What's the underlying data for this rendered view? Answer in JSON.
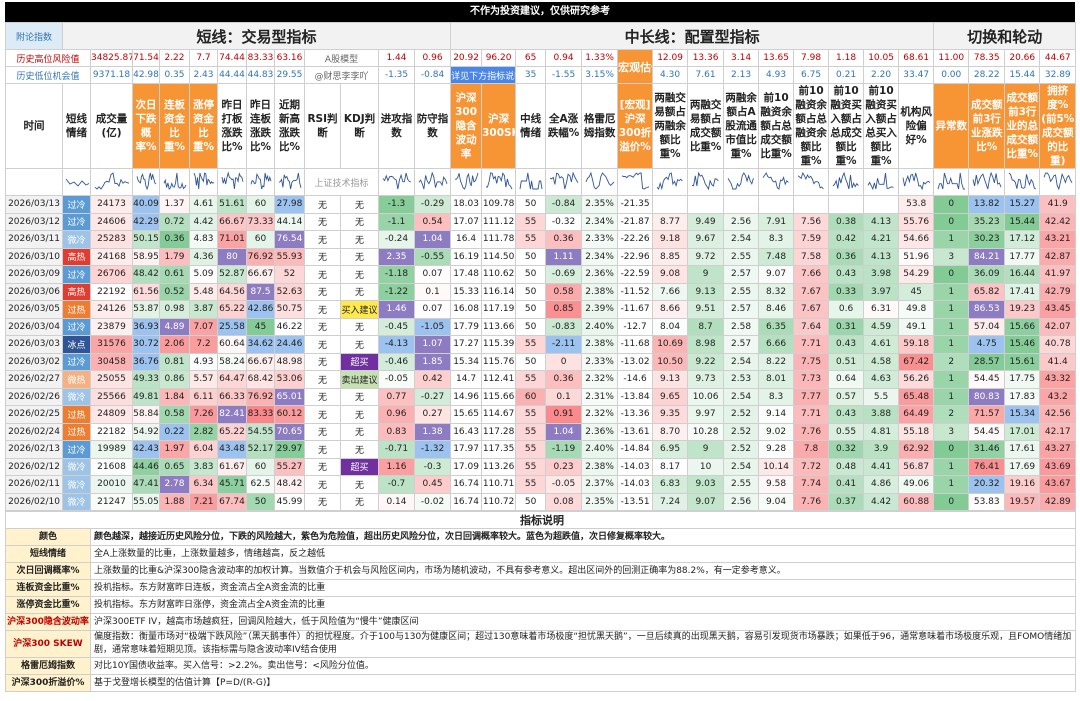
{
  "banner": "不作为投资建议，仅供研究参考",
  "sections": {
    "index_note": "附论指数",
    "short": "短线：交易型指标",
    "mid": "中长线：配置型指标",
    "rotation": "切换和轮动"
  },
  "risk_row": {
    "label": "历史高位风险值",
    "cells": [
      "34825.87",
      "71.54",
      "2.22",
      "7.7",
      "74.44",
      "83.33",
      "63.16",
      "A股模型",
      "1.44",
      "0.96",
      "20.92",
      "96.20",
      "65",
      "0.94",
      "1.33%",
      "宏观估值",
      "12.09",
      "13.36",
      "3.14",
      "13.65",
      "7.98",
      "1.18",
      "10.05",
      "68.61",
      "11.00",
      "78.35",
      "20.66",
      "44.67"
    ]
  },
  "opportunity_row": {
    "label": "历史低位机会值",
    "cells": [
      "9371.18",
      "42.98",
      "0.35",
      "2.43",
      "44.44",
      "44.83",
      "29.55",
      "@财思李李吖",
      "-1.35",
      "-0.84",
      "详见下方指标说明",
      "35",
      "-1.55",
      "3.15%",
      "4.30",
      "7.61",
      "2.13",
      "4.93",
      "6.75",
      "0.21",
      "2.20",
      "33.47",
      "0.00",
      "28.22",
      "15.44",
      "32.89"
    ]
  },
  "table": {
    "columns": [
      "时间",
      "短线情绪",
      "成交量(亿)",
      "次日下跌概率%",
      "连板资金比重%",
      "涨停资金比重%",
      "昨日打板涨跌比%",
      "昨日连板涨跌比%",
      "近期新高涨跌比%",
      "RSI判断",
      "KDJ判断",
      "进攻指数",
      "防守指数",
      "沪深300隐含波动率",
      "沪深300SKEW",
      "中线情绪",
      "全A涨跌幅%",
      "格雷厄姆指数",
      "[宏观]沪深300折溢价%",
      "两融交易额占两融余额比重%",
      "两融交易额占成交额比重%",
      "两融余额占A股流通市值比重%",
      "前10融资余额占总成交额比重%",
      "前10融资余额占总融资余额比重%",
      "前10融资买入额占总成交额比重%",
      "前10融资买入额占总买入额比重%",
      "机构风险偏好%",
      "异常数",
      "成交额前3行业涨跌比%",
      "成交额前3行业的总成交额比重%",
      "拥挤度%(前5%成交额的比重)"
    ],
    "sparkline_note": "上证技术指标",
    "rows": [
      [
        "2026/03/13",
        "过冷",
        "24173",
        "40.09",
        "1.37",
        "4.61",
        "51.61",
        "60",
        "27.98",
        "无",
        "无",
        "-1.3",
        "-0.29",
        "18.03",
        "109.78",
        "50",
        "-0.84",
        "2.35%",
        "-21.35",
        null,
        null,
        null,
        null,
        null,
        null,
        null,
        "53.8",
        "0",
        "13.82",
        "15.27",
        "41.9"
      ],
      [
        "2026/03/12",
        "过冷",
        "24606",
        "42.29",
        "0.72",
        "4.42",
        "66.67",
        "73.33",
        "44.14",
        "无",
        "无",
        "-1.1",
        "0.54",
        "17.07",
        "111.12",
        "55",
        "-0.32",
        "2.34%",
        "-21.87",
        "8.77",
        "9.49",
        "2.56",
        "7.91",
        "7.56",
        "0.38",
        "4.13",
        "55.76",
        "0",
        "35.23",
        "15.44",
        "42.42"
      ],
      [
        "2026/03/11",
        "微冷",
        "25283",
        "50.15",
        "0.36",
        "4.83",
        "71.01",
        "60",
        "76.54",
        "无",
        "无",
        "-0.24",
        "1.04",
        "16.4",
        "111.78",
        "55",
        "0.36",
        "2.33%",
        "-22.26",
        "9.18",
        "9.67",
        "2.54",
        "8.3",
        "7.59",
        "0.42",
        "4.21",
        "54.66",
        "1",
        "30.23",
        "17.12",
        "43.21"
      ],
      [
        "2026/03/10",
        "高热",
        "24168",
        "58.95",
        "1.79",
        "4.36",
        "80",
        "76.92",
        "55.93",
        "无",
        "无",
        "2.35",
        "-0.55",
        "16.19",
        "114.50",
        "50",
        "1.11",
        "2.34%",
        "-22.96",
        "8.85",
        "9.72",
        "2.55",
        "7.48",
        "7.58",
        "0.36",
        "4.13",
        "51.96",
        "3",
        "84.21",
        "17.77",
        "42.87"
      ],
      [
        "2026/03/09",
        "过冷",
        "26706",
        "48.42",
        "0.61",
        "5.09",
        "52.87",
        "66.67",
        "52",
        "无",
        "无",
        "-1.18",
        "0.07",
        "17.48",
        "110.62",
        "50",
        "-0.69",
        "2.36%",
        "-22.59",
        "9.08",
        "9",
        "2.57",
        "9.07",
        "7.66",
        "0.43",
        "3.98",
        "54.29",
        "0",
        "36.09",
        "16.44",
        "41.97"
      ],
      [
        "2026/03/06",
        "高热",
        "22192",
        "61.56",
        "0.52",
        "5.48",
        "64.56",
        "87.5",
        "52.63",
        "无",
        "无",
        "-1.22",
        "0.1",
        "15.33",
        "116.14",
        "50",
        "0.58",
        "2.38%",
        "-11.52",
        "7.66",
        "9.13",
        "2.55",
        "8.32",
        "7.67",
        "0.33",
        "3.97",
        "45",
        "1",
        "65.82",
        "17.41",
        "42.79"
      ],
      [
        "2026/03/05",
        "过热",
        "24126",
        "53.87",
        "0.98",
        "3.87",
        "65.22",
        "42.86",
        "50.75",
        "无",
        "买入建议",
        "1.46",
        "0.07",
        "16.08",
        "117.19",
        "50",
        "0.85",
        "2.39%",
        "-11.67",
        "8.66",
        "9.51",
        "2.57",
        "8.46",
        "7.67",
        "0.6",
        "6.31",
        "49.8",
        "1",
        "86.53",
        "19.23",
        "43.45"
      ],
      [
        "2026/03/04",
        "过冷",
        "23879",
        "36.93",
        "4.89",
        "7.07",
        "25.58",
        "45",
        "46.22",
        "无",
        "无",
        "-0.45",
        "-1.05",
        "17.79",
        "113.66",
        "50",
        "-0.83",
        "2.40%",
        "-12.7",
        "8.04",
        "8.7",
        "2.58",
        "6.35",
        "7.64",
        "0.31",
        "4.59",
        "49.1",
        "1",
        "57.04",
        "15.66",
        "42.07"
      ],
      [
        "2026/03/03",
        "冰点",
        "31576",
        "30.72",
        "2.06",
        "7.2",
        "60.64",
        "34.62",
        "24.46",
        "无",
        "无",
        "-4.13",
        "1.07",
        "17.27",
        "115.39",
        "55",
        "-2.11",
        "2.38%",
        "-11.68",
        "10.69",
        "8.98",
        "2.57",
        "6.66",
        "7.71",
        "0.43",
        "4.61",
        "59.18",
        "1",
        "4.75",
        "15.46",
        "40.78"
      ],
      [
        "2026/03/02",
        "过冷",
        "30458",
        "36.76",
        "0.81",
        "4.93",
        "58.24",
        "66.67",
        "48.98",
        "无",
        "超买",
        "-0.46",
        "1.85",
        "15.34",
        "115.76",
        "50",
        "0",
        "2.33%",
        "-13.02",
        "10.50",
        "9.22",
        "2.54",
        "8.22",
        "7.75",
        "0.51",
        "4.58",
        "67.42",
        "2",
        "28.57",
        "15.61",
        "41.4"
      ],
      [
        "2026/02/27",
        "微热",
        "25055",
        "49.33",
        "0.86",
        "5.57",
        "64.47",
        "68.42",
        "53.06",
        "无",
        "卖出建议",
        "-0.05",
        "0.42",
        "14.7",
        "112.41",
        "55",
        "0.36",
        "2.32%",
        "-14.6",
        "9.13",
        "9.73",
        "2.53",
        "8.01",
        "7.73",
        "0.64",
        "4.63",
        "56.26",
        "1",
        "54.45",
        "17.75",
        "43.32"
      ],
      [
        "2026/02/26",
        "微冷",
        "25566",
        "49.81",
        "1.84",
        "6.11",
        "66.33",
        "76.92",
        "65.01",
        "无",
        "无",
        "0.77",
        "-0.27",
        "14.96",
        "115.66",
        "60",
        "0.1",
        "2.31%",
        "-13.84",
        "9.65",
        "10.06",
        "2.54",
        "8.3",
        "7.77",
        "0.57",
        "5.5",
        "65.48",
        "1",
        "80.83",
        "17.83",
        "43.2"
      ],
      [
        "2026/02/25",
        "过热",
        "24809",
        "58.84",
        "0.58",
        "7.26",
        "82.41",
        "83.33",
        "60.12",
        "无",
        "无",
        "0.96",
        "0.27",
        "15.65",
        "114.67",
        "55",
        "0.91",
        "2.32%",
        "-13.36",
        "9.35",
        "9.97",
        "2.52",
        "9.14",
        "7.71",
        "0.43",
        "3.88",
        "64.49",
        "2",
        "71.57",
        "15.34",
        "42.56"
      ],
      [
        "2026/02/24",
        "过热",
        "22182",
        "54.92",
        "0.22",
        "2.82",
        "65.22",
        "54.55",
        "70.65",
        "无",
        "无",
        "0.83",
        "1.38",
        "16.43",
        "117.28",
        "55",
        "1.04",
        "2.36%",
        "-13.61",
        "8.70",
        "10.28",
        "2.52",
        "9.02",
        "7.76",
        "0.55",
        "4.81",
        "55.18",
        "3",
        "54.45",
        "17.01",
        "42.17"
      ],
      [
        "2026/02/13",
        "过冷",
        "19989",
        "42.43",
        "1.97",
        "6.04",
        "43.48",
        "52.17",
        "29.97",
        "无",
        "无",
        "-0.71",
        "-1.32",
        "17.97",
        "117.35",
        "55",
        "-1.19",
        "2.40%",
        "-14.84",
        "6.95",
        "9",
        "2.52",
        "9.28",
        "7.8",
        "0.32",
        "3.9",
        "62.92",
        "0",
        "31.46",
        "17.61",
        "43.27"
      ],
      [
        "2026/02/12",
        "微冷",
        "21608",
        "44.46",
        "0.65",
        "3.83",
        "61.67",
        "60",
        "55.27",
        "无",
        "超买",
        "1.16",
        "-0.3",
        "17.09",
        "113.26",
        "55",
        "0.23",
        "2.38%",
        "-14.03",
        "8.17",
        "10",
        "2.54",
        "10.14",
        "7.72",
        "0.48",
        "4.41",
        "56.87",
        "1",
        "76.41",
        "17.69",
        "43.69"
      ],
      [
        "2026/02/11",
        "微冷",
        "20010",
        "47.41",
        "2.78",
        "6.34",
        "45.71",
        "62.5",
        "48.42",
        "无",
        "无",
        "-0.7",
        "0.45",
        "16.74",
        "110.71",
        "55",
        "-0.05",
        "2.37%",
        "-14.03",
        "6.83",
        "9.03",
        "2.55",
        "9.58",
        "7.74",
        "0.41",
        "4.86",
        "49.06",
        "1",
        "20.32",
        "19.16",
        "43.67"
      ],
      [
        "2026/02/10",
        "微冷",
        "21247",
        "55.05",
        "1.88",
        "7.21",
        "67.74",
        "50",
        "45.99",
        "无",
        "无",
        "0.14",
        "-0.02",
        "16.74",
        "110.72",
        "50",
        "0.08",
        "2.35%",
        "-13.51",
        "7.24",
        "9.07",
        "2.56",
        "9.04",
        "7.76",
        "0.37",
        "4.42",
        "60.88",
        "0",
        "53.83",
        "19.57",
        "42.89"
      ]
    ],
    "mood_colors": [
      "#5b9bd5",
      "#5b9bd5",
      "#9dc3e6",
      "#e03c31",
      "#5b9bd5",
      "#e03c31",
      "#ed7d31",
      "#5b9bd5",
      "#2f5597",
      "#5b9bd5",
      "#f4b183",
      "#9dc3e6",
      "#ed7d31",
      "#ed7d31",
      "#5b9bd5",
      "#9dc3e6",
      "#9dc3e6",
      "#9dc3e6"
    ],
    "kdj_colors": [
      null,
      null,
      null,
      null,
      null,
      null,
      "#ffe94d",
      null,
      null,
      "#7030a0",
      "#c6e0b4",
      null,
      null,
      null,
      null,
      "#7030a0",
      null,
      null
    ]
  },
  "legend": {
    "title": "指标说明",
    "items": [
      {
        "label": "颜色",
        "text": "颜色越深，越接近历史风险分位，下跌的风险越大，紫色为危险值，超出历史风险分位，次日回调概率较大。蓝色为超跌值，次日修复概率较大。"
      },
      {
        "label": "短线情绪",
        "text": "全A上涨数量的比重，上涨数量越多，情绪越高，反之越低"
      },
      {
        "label": "次日回调概率%",
        "text": "上涨数量的比重&沪深300隐含波动率的加权计算。当数值介于机会与风险区间内，市场为随机波动，不具有参考意义。超出区间外的回测正确率为88.2%，有一定参考意义。"
      },
      {
        "label": "连板资金比重%",
        "text": "投机指标。东方财富昨日连板，资金流占全A资金流的比重"
      },
      {
        "label": "涨停资金比重%",
        "text": "投机指标。东方财富昨日涨停，资金流占全A资金流的比重"
      },
      {
        "label": "沪深300隐含波动率",
        "text": "沪深300ETF IV，越高市场越疯狂，回调风险越大，低于风险值为“慢牛”健康区间"
      },
      {
        "label": "沪深300 SKEW",
        "text": "偏度指数：衡量市场对“极端下跌风险”（黑天鹅事件）的担忧程度。介于100与130为健康区间；超过130意味着市场极度“担忧黑天鹅”，一旦后续真的出现黑天鹅，容易引发现货市场暴跌；如果低于96，通常意味着市场极度乐观，且FOMO情绪加剧，通常意味着短期见顶。该指标需与隐含波动率IV结合使用"
      },
      {
        "label": "格雷厄姆指数",
        "text": "对比10Y国债收益率。买入信号：>2.2%。卖出信号：<风险分位值。"
      },
      {
        "label": "沪深300折溢价%",
        "text": "基于戈登增长模型的估值计算【P=D/(R-G)】"
      }
    ]
  }
}
